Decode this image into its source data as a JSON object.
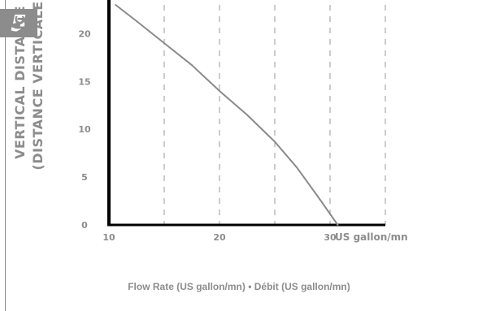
{
  "badge": "5",
  "chart_data": {
    "type": "line",
    "ylabel_line1": "VERTICAL DISTANCE",
    "ylabel_line2": "(DISTANCE VERTICALE)",
    "xlabel": "Flow Rate (US gallon/mn) • Débit (US gallon/mn)",
    "x_unit": "US gallon/mn",
    "xlim": [
      10,
      35
    ],
    "ylim": [
      0,
      23
    ],
    "x_ticks": [
      10,
      20,
      30
    ],
    "y_ticks": [
      0,
      5,
      10,
      15,
      20
    ],
    "x_grid": [
      15,
      20,
      25,
      30,
      35
    ],
    "grid": "dashed vertical",
    "colors": {
      "curve": "#8a8a8a",
      "axis": "#000000",
      "grid": "#9a9a9a",
      "text": "#8c8c8c"
    },
    "series": [
      {
        "values": [
          {
            "x": 10.6,
            "y": 23
          },
          {
            "x": 12.5,
            "y": 21.3
          },
          {
            "x": 15,
            "y": 19
          },
          {
            "x": 17.5,
            "y": 16.7
          },
          {
            "x": 20,
            "y": 14
          },
          {
            "x": 22.5,
            "y": 11.5
          },
          {
            "x": 25,
            "y": 8.7
          },
          {
            "x": 27,
            "y": 6
          },
          {
            "x": 29,
            "y": 2.8
          },
          {
            "x": 30.7,
            "y": 0
          }
        ]
      }
    ]
  }
}
